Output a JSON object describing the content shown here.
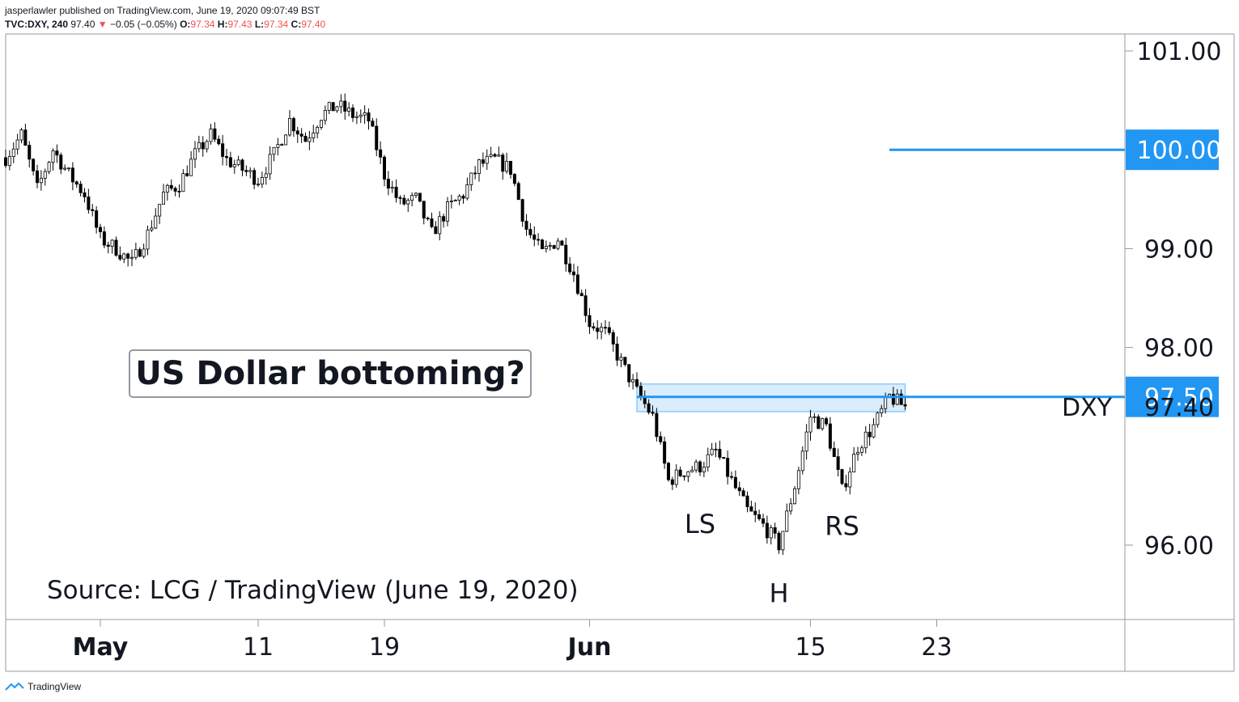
{
  "header": {
    "publisher": "jasperlawler published on TradingView.com, June 19, 2020 09:07:49 BST",
    "symbol": "TVC:DXY, 240",
    "last": "97.40",
    "change_arrow": "▼",
    "change": "−0.05 (−0.05%)",
    "o_label": "O:",
    "o_value": "97.34",
    "h_label": "H:",
    "h_value": "97.43",
    "l_label": "L:",
    "l_value": "97.34",
    "c_label": "C:",
    "c_value": "97.40"
  },
  "annotation": "US Dollar bottoming?",
  "source": "Source: LCG / TradingView (June 19, 2020)",
  "footer": {
    "brand": "TradingView"
  },
  "colors": {
    "accent": "#2196f3",
    "candle": "#000000",
    "zone": "#bbdefb",
    "grid": "#9598a1"
  },
  "chart_data": {
    "type": "candlestick",
    "symbol": "DXY",
    "interval": "240",
    "ylim": [
      95.25,
      101.2
    ],
    "y_ticks": [
      "101.00",
      "99.00",
      "98.00",
      "96.00"
    ],
    "x_ticks": [
      "May",
      "11",
      "19",
      "Jun",
      "15",
      "23"
    ],
    "x_tick_dates": [
      "2020-05-01",
      "2020-05-11",
      "2020-05-19",
      "2020-06-01",
      "2020-06-15",
      "2020-06-23"
    ],
    "price_labels": [
      {
        "value": 100.0,
        "text": "100.00",
        "style": "marker"
      },
      {
        "value": 97.5,
        "text": "97.50",
        "style": "marker"
      },
      {
        "value": 97.4,
        "text": "97.40",
        "style": "plain",
        "name": "DXY"
      }
    ],
    "horizontal_lines": [
      {
        "value": 100.0,
        "from_date": "2020-06-20"
      },
      {
        "value": 97.5,
        "from_date": "2020-06-04"
      }
    ],
    "zone": {
      "from_date": "2020-06-04",
      "to_date": "2020-06-21",
      "low": 97.35,
      "high": 97.63
    },
    "pattern_labels": [
      {
        "text": "LS",
        "date": "2020-06-08",
        "value": 96.22
      },
      {
        "text": "H",
        "date": "2020-06-13",
        "value": 95.52
      },
      {
        "text": "RS",
        "date": "2020-06-17",
        "value": 96.2
      }
    ],
    "price_path": [
      [
        "2020-04-25",
        99.92
      ],
      [
        "2020-04-26",
        100.15
      ],
      [
        "2020-04-27",
        99.6
      ],
      [
        "2020-04-28",
        100.0
      ],
      [
        "2020-04-29",
        99.75
      ],
      [
        "2020-04-30",
        99.55
      ],
      [
        "2020-05-01",
        99.1
      ],
      [
        "2020-05-02",
        99.0
      ],
      [
        "2020-05-03",
        98.85
      ],
      [
        "2020-05-04",
        99.15
      ],
      [
        "2020-05-05",
        99.55
      ],
      [
        "2020-05-06",
        99.65
      ],
      [
        "2020-05-07",
        99.95
      ],
      [
        "2020-05-08",
        100.15
      ],
      [
        "2020-05-09",
        99.9
      ],
      [
        "2020-05-10",
        99.8
      ],
      [
        "2020-05-11",
        99.7
      ],
      [
        "2020-05-12",
        99.95
      ],
      [
        "2020-05-13",
        100.3
      ],
      [
        "2020-05-14",
        100.1
      ],
      [
        "2020-05-15",
        100.35
      ],
      [
        "2020-05-16",
        100.45
      ],
      [
        "2020-05-17",
        100.35
      ],
      [
        "2020-05-18",
        100.3
      ],
      [
        "2020-05-19",
        99.75
      ],
      [
        "2020-05-20",
        99.45
      ],
      [
        "2020-05-21",
        99.5
      ],
      [
        "2020-05-22",
        99.15
      ],
      [
        "2020-05-23",
        99.4
      ],
      [
        "2020-05-24",
        99.55
      ],
      [
        "2020-05-25",
        99.85
      ],
      [
        "2020-05-26",
        99.9
      ],
      [
        "2020-05-27",
        99.8
      ],
      [
        "2020-05-28",
        99.2
      ],
      [
        "2020-05-29",
        98.95
      ],
      [
        "2020-05-30",
        99.1
      ],
      [
        "2020-05-31",
        98.75
      ],
      [
        "2020-06-01",
        98.25
      ],
      [
        "2020-06-02",
        98.15
      ],
      [
        "2020-06-03",
        97.85
      ],
      [
        "2020-06-04",
        97.55
      ],
      [
        "2020-06-05",
        97.3
      ],
      [
        "2020-06-06",
        96.65
      ],
      [
        "2020-06-07",
        96.75
      ],
      [
        "2020-06-08",
        96.8
      ],
      [
        "2020-06-09",
        96.95
      ],
      [
        "2020-06-10",
        96.65
      ],
      [
        "2020-06-11",
        96.35
      ],
      [
        "2020-06-12",
        96.2
      ],
      [
        "2020-06-13",
        96.0
      ],
      [
        "2020-06-14",
        96.6
      ],
      [
        "2020-06-15",
        97.3
      ],
      [
        "2020-06-16",
        97.2
      ],
      [
        "2020-06-17",
        96.55
      ],
      [
        "2020-06-18",
        97.0
      ],
      [
        "2020-06-19",
        97.2
      ],
      [
        "2020-06-20",
        97.5
      ],
      [
        "2020-06-21",
        97.4
      ]
    ]
  }
}
